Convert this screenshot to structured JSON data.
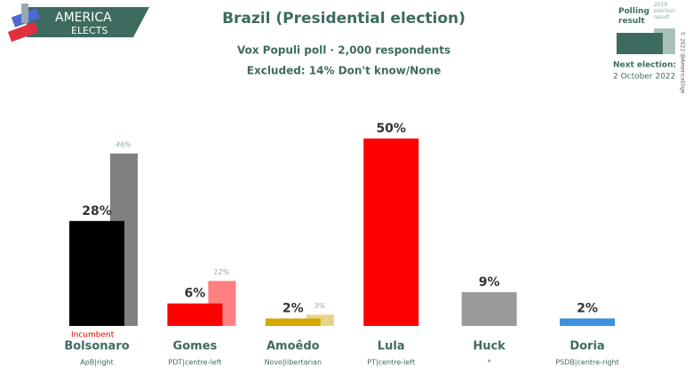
{
  "chart_data": {
    "type": "bar",
    "title": "Brazil (Presidential election)",
    "subtitle": "Vox Populi poll · 2,000 respondents",
    "note": "Excluded: 14% Don't know/None",
    "logo": [
      "AMERICA",
      "ELECTS"
    ],
    "next_election_label": "Next election:",
    "next_election_date": "2 October 2022",
    "copyright": "© 2022 @AmericaElige",
    "annotation": "Incumbent",
    "categories": [
      "Bolsonaro",
      "Gomes",
      "Amoêdo",
      "Lula",
      "Huck",
      "Doria"
    ],
    "category_subtitles": [
      "ApB|right",
      "PDT|centre-left",
      "Novo|libertarian",
      "PT|centre-left",
      "*",
      "PSDB|centre-right"
    ],
    "series": [
      {
        "name": "Polling result",
        "color": "#3d6b5f",
        "bar_colors": [
          "#000000",
          "#ff0000",
          "#d4a800",
          "#ff0000",
          "#999999",
          "#3d8fe0"
        ],
        "values": [
          28,
          6,
          2,
          50,
          9,
          2
        ],
        "value_labels": [
          "28%",
          "6%",
          "2%",
          "50%",
          "9%",
          "2%"
        ]
      },
      {
        "name": "2018 election result",
        "color": "#a9c1b9",
        "bar_colors": [
          "#808080",
          "#ff8080",
          "#e8d38a",
          null,
          null,
          null
        ],
        "values": [
          46,
          12,
          3,
          null,
          null,
          null
        ],
        "value_labels": [
          "46%",
          "12%",
          "3%",
          null,
          null,
          null
        ]
      }
    ]
  }
}
